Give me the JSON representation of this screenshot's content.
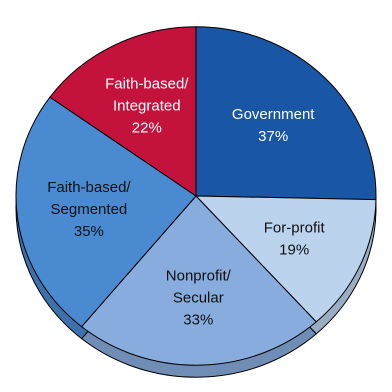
{
  "chart_data": {
    "type": "pie",
    "title": "",
    "legend": "none",
    "slices": [
      {
        "label_lines": [
          "Government"
        ],
        "value_label": "37%",
        "value": 37,
        "color": "#1a56a6",
        "text_color": "#ffffff"
      },
      {
        "label_lines": [
          "For-profit"
        ],
        "value_label": "19%",
        "value": 19,
        "color": "#bcd3ee",
        "text_color": "#111111"
      },
      {
        "label_lines": [
          "Nonprofit/",
          "Secular"
        ],
        "value_label": "33%",
        "value": 33,
        "color": "#87acdd",
        "text_color": "#111111"
      },
      {
        "label_lines": [
          "Faith-based/",
          "Segmented"
        ],
        "value_label": "35%",
        "value": 35,
        "color": "#4a8ad0",
        "text_color": "#111111"
      },
      {
        "label_lines": [
          "Faith-based/",
          "Integrated"
        ],
        "value_label": "22%",
        "value": 22,
        "color": "#c3123c",
        "text_color": "#ffffff"
      }
    ]
  }
}
